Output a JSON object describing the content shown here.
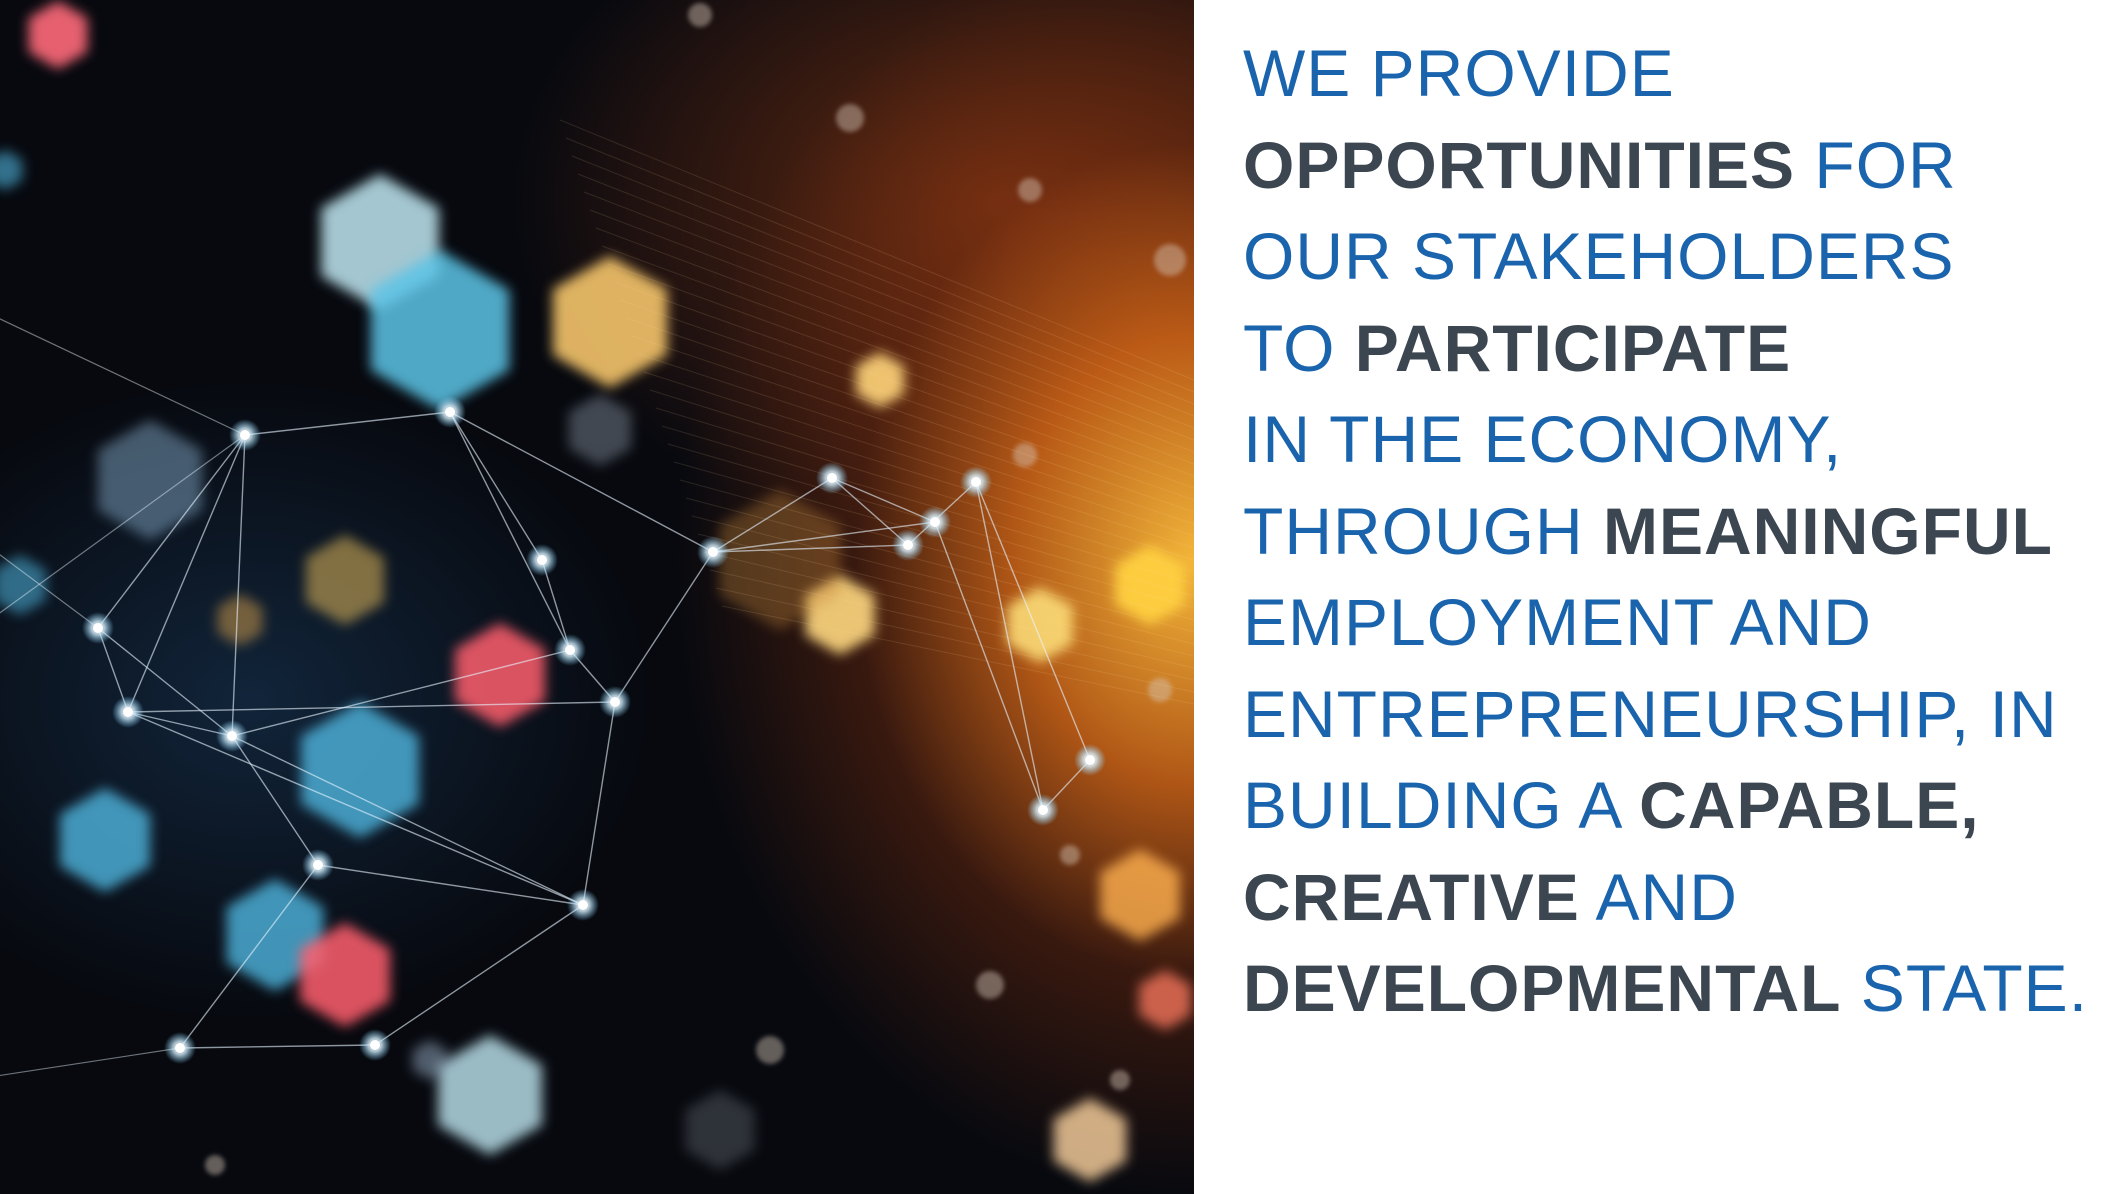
{
  "statement": {
    "lines": [
      [
        {
          "t": "We provide",
          "w": "normal"
        }
      ],
      [
        {
          "t": "opportunities",
          "w": "bold"
        },
        {
          "t": " for",
          "w": "normal"
        }
      ],
      [
        {
          "t": "our stakeholders",
          "w": "normal"
        }
      ],
      [
        {
          "t": "to ",
          "w": "normal"
        },
        {
          "t": "participate",
          "w": "bold"
        }
      ],
      [
        {
          "t": "in the economy,",
          "w": "normal"
        }
      ],
      [
        {
          "t": "through ",
          "w": "normal"
        },
        {
          "t": "meaningful",
          "w": "bold"
        }
      ],
      [
        {
          "t": "employment and",
          "w": "normal"
        }
      ],
      [
        {
          "t": "entrepreneurship, in",
          "w": "normal"
        }
      ],
      [
        {
          "t": "building a ",
          "w": "normal"
        },
        {
          "t": "capable,",
          "w": "bold"
        }
      ],
      [
        {
          "t": "creative",
          "w": "bold"
        },
        {
          "t": " and",
          "w": "normal"
        }
      ],
      [
        {
          "t": "developmental",
          "w": "bold"
        },
        {
          "t": " state.",
          "w": "normal"
        }
      ]
    ]
  },
  "colors": {
    "text_regular": "#1a64ad",
    "text_bold": "#3b4651",
    "background": "#ffffff",
    "art_glow": "#f0a030"
  },
  "image": {
    "icon": "network-bokeh-illustration"
  }
}
